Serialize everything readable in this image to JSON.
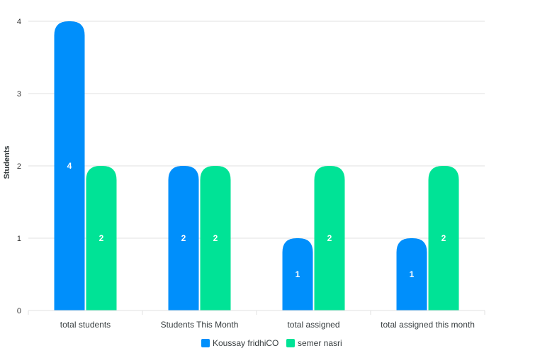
{
  "chart_data": {
    "type": "bar",
    "categories": [
      "total students",
      "Students This Month",
      "total assigned",
      "total assigned this month"
    ],
    "series": [
      {
        "name": "Koussay fridhiCO",
        "values": [
          4,
          2,
          1,
          1
        ],
        "color": "#008ffb"
      },
      {
        "name": "semer nasri",
        "values": [
          2,
          2,
          2,
          2
        ],
        "color": "#00e396"
      }
    ],
    "title": "",
    "xlabel": "",
    "ylabel": "Students",
    "ylim": [
      0,
      4
    ],
    "yticks": [
      "0",
      "1",
      "2",
      "3",
      "4"
    ],
    "grid": true,
    "legend_position": "bottom-center",
    "data_labels": true
  }
}
